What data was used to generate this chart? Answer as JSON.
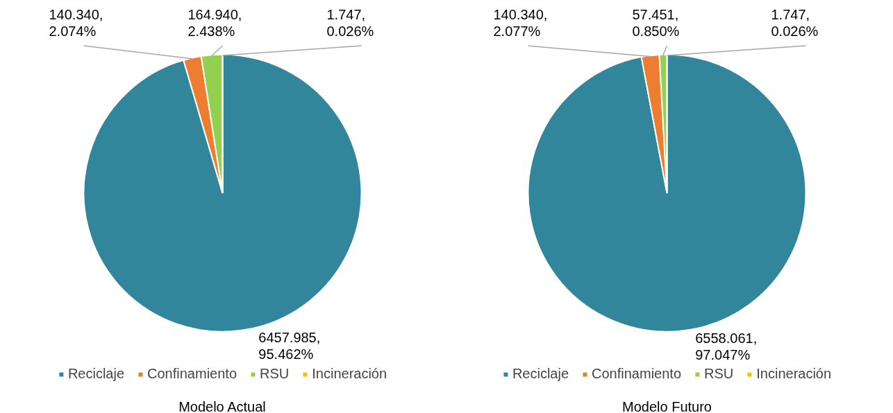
{
  "chart_data": [
    {
      "type": "pie",
      "title": "Modelo Actual",
      "categories": [
        "Reciclaje",
        "Confinamiento",
        "RSU",
        "Incineración"
      ],
      "values": [
        6457.985,
        140.34,
        164.94,
        1.747
      ],
      "colors": [
        "#31869b",
        "#ed7d31",
        "#92d050",
        "#ffc000"
      ],
      "value_labels": [
        "6457.985, 95.462%",
        "140.340, 2.074%",
        "164.940, 2.438%",
        "1.747, 0.026%"
      ],
      "legend": "bottom"
    },
    {
      "type": "pie",
      "title": "Modelo Futuro",
      "categories": [
        "Reciclaje",
        "Confinamiento",
        "RSU",
        "Incineración"
      ],
      "values": [
        6558.061,
        140.34,
        57.451,
        1.747
      ],
      "colors": [
        "#31869b",
        "#ed7d31",
        "#92d050",
        "#ffc000"
      ],
      "value_labels": [
        "6558.061, 97.047%",
        "140.340, 2.077%",
        "57.451, 0.850%",
        "1.747, 0.026%"
      ],
      "legend": "bottom"
    }
  ]
}
